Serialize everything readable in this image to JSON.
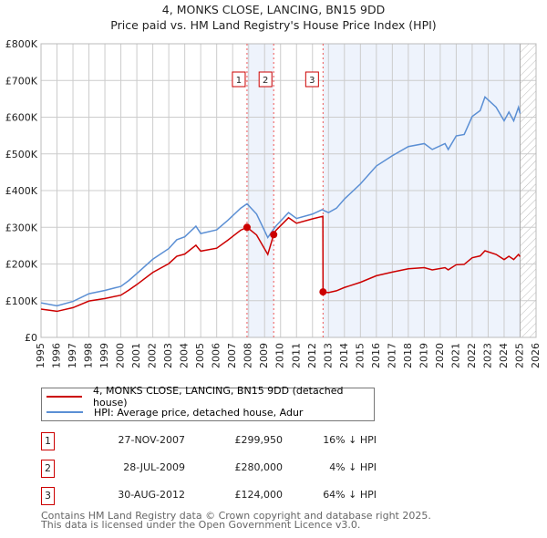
{
  "title": "4, MONKS CLOSE, LANCING, BN15 9DD",
  "subtitle": "Price paid vs. HM Land Registry's House Price Index (HPI)",
  "chart_data": {
    "type": "line",
    "title": "4, MONKS CLOSE, LANCING, BN15 9DD",
    "subtitle": "Price paid vs. HM Land Registry's House Price Index (HPI)",
    "xlim": [
      1995,
      2026
    ],
    "ylim": [
      0,
      800000
    ],
    "x_ticks": [
      "1995",
      "1996",
      "1997",
      "1998",
      "1999",
      "2000",
      "2001",
      "2002",
      "2003",
      "2004",
      "2005",
      "2006",
      "2007",
      "2008",
      "2009",
      "2010",
      "2011",
      "2012",
      "2013",
      "2014",
      "2015",
      "2016",
      "2017",
      "2018",
      "2019",
      "2020",
      "2021",
      "2022",
      "2023",
      "2024",
      "2025",
      "2026"
    ],
    "y_ticks": [
      {
        "v": 0,
        "label": "£0"
      },
      {
        "v": 100000,
        "label": "£100K"
      },
      {
        "v": 200000,
        "label": "£200K"
      },
      {
        "v": 300000,
        "label": "£300K"
      },
      {
        "v": 400000,
        "label": "£400K"
      },
      {
        "v": 500000,
        "label": "£500K"
      },
      {
        "v": 600000,
        "label": "£600K"
      },
      {
        "v": 700000,
        "label": "£700K"
      },
      {
        "v": 800000,
        "label": "£800K"
      }
    ],
    "grid": true,
    "shaded_ranges": [
      [
        2007.9,
        2009.57
      ],
      [
        2012.66,
        2025.0
      ]
    ],
    "forecast_hatch_from": 2025.0,
    "series": [
      {
        "name": "4, MONKS CLOSE, LANCING, BN15 9DD (detached house)",
        "color": "#cc0000",
        "x": [
          1995,
          1996,
          1997,
          1998,
          1999,
          2000,
          2000.5,
          2001,
          2002,
          2003,
          2003.5,
          2004,
          2004.7,
          2005,
          2006,
          2006.7,
          2007.5,
          2007.9,
          2008.5,
          2009.2,
          2009.57,
          2009.7,
          2010.5,
          2011,
          2012,
          2012.65,
          2012.66,
          2013,
          2013.5,
          2014,
          2015,
          2016,
          2017,
          2018,
          2019,
          2019.5,
          2020.3,
          2020.5,
          2021,
          2021.5,
          2022,
          2022.5,
          2022.8,
          2023.5,
          2024,
          2024.3,
          2024.6,
          2024.9,
          2025
        ],
        "y": [
          77000,
          71000,
          81000,
          99000,
          106000,
          115000,
          129000,
          144000,
          177000,
          201000,
          221000,
          227000,
          251000,
          235000,
          243000,
          265000,
          292000,
          299950,
          279000,
          226000,
          280000,
          291000,
          326000,
          311000,
          323000,
          330000,
          124000,
          122000,
          127000,
          136000,
          150000,
          168000,
          178000,
          187000,
          190000,
          184000,
          190000,
          184000,
          198000,
          199000,
          217000,
          222000,
          236000,
          226000,
          212000,
          221000,
          212000,
          226000,
          220000
        ]
      },
      {
        "name": "HPI: Average price, detached house, Adur",
        "color": "#5b8fd4",
        "x": [
          1995,
          1996,
          1997,
          1998,
          1999,
          2000,
          2000.5,
          2001,
          2002,
          2003,
          2003.5,
          2004,
          2004.7,
          2005,
          2006,
          2006.7,
          2007.5,
          2007.9,
          2008.5,
          2009.2,
          2009.7,
          2010.5,
          2011,
          2012,
          2012.6,
          2013,
          2013.5,
          2014,
          2015,
          2016,
          2017,
          2018,
          2019,
          2019.5,
          2020.3,
          2020.5,
          2021,
          2021.5,
          2022,
          2022.5,
          2022.8,
          2023.5,
          2024,
          2024.3,
          2024.6,
          2024.9,
          2025
        ],
        "y": [
          94000,
          86000,
          98000,
          119000,
          128000,
          139000,
          155000,
          174000,
          213000,
          242000,
          266000,
          274000,
          303000,
          283000,
          293000,
          319000,
          352000,
          364000,
          336000,
          272000,
          303000,
          340000,
          324000,
          336000,
          348000,
          340000,
          352000,
          377000,
          418000,
          467000,
          495000,
          520000,
          528000,
          512000,
          528000,
          512000,
          549000,
          553000,
          602000,
          618000,
          655000,
          627000,
          590000,
          614000,
          590000,
          627000,
          610000
        ]
      }
    ],
    "sales": [
      {
        "label": "1",
        "x": 2007.9,
        "y": 299950,
        "date": "27-NOV-2007",
        "price": "£299,950",
        "hpi": "16% ↓ HPI"
      },
      {
        "label": "2",
        "x": 2009.57,
        "y": 280000,
        "date": "28-JUL-2009",
        "price": "£280,000",
        "hpi": "4% ↓ HPI"
      },
      {
        "label": "3",
        "x": 2012.66,
        "y": 124000,
        "date": "30-AUG-2012",
        "price": "£124,000",
        "hpi": "64% ↓ HPI"
      }
    ],
    "legend_placement": "below"
  },
  "legend": {
    "red": "4, MONKS CLOSE, LANCING, BN15 9DD (detached house)",
    "blue": "HPI: Average price, detached house, Adur"
  },
  "footer": {
    "line1": "Contains HM Land Registry data © Crown copyright and database right 2025.",
    "line2": "This data is licensed under the Open Government Licence v3.0."
  }
}
